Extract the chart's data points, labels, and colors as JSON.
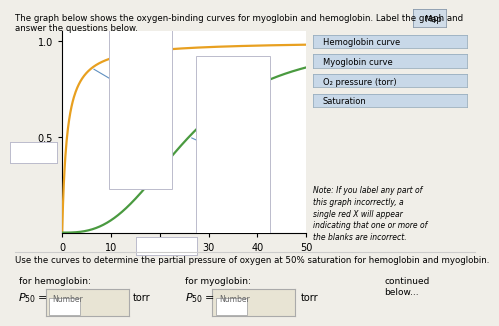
{
  "title_line1": "The graph below shows the oxygen-binding curves for myoglobin and hemoglobin. Label the graph and",
  "title_line2": "answer the questions below.",
  "xlim": [
    0,
    50
  ],
  "ylim": [
    0,
    1.05
  ],
  "xticks": [
    0,
    10,
    20,
    30,
    40,
    50
  ],
  "yticks": [
    0.5,
    1.0
  ],
  "myoglobin_color": "#E8A020",
  "hemoglobin_color": "#4A9A40",
  "label_line_color": "#6090C0",
  "bg_color": "#F0EEE8",
  "plot_bg": "#FFFFFF",
  "legend_items": [
    "Hemoglobin curve",
    "Myoglobin curve",
    "O₂ pressure (torr)",
    "Saturation"
  ],
  "legend_box_color": "#C8D8E8",
  "legend_border_color": "#9AAFBF",
  "note_text": "Note: If you label any part of\nthis graph incorrectly, a\nsingle red X will appear\nindicating that one or more of\nthe blanks are incorrect.",
  "bottom_text": "Use the curves to determine the partial pressure of oxygen at 50% saturation for hemoglobin and myoglobin.",
  "hemo_label": "for hemoglobin:",
  "myo_label": "for myoglobin:",
  "continued_text": "continued\nbelow...",
  "torr_label": "torr",
  "number_label": "Number",
  "number_box_color": "#E8E4D4",
  "number_box_border": "#AAAAAA",
  "map_label": "Map",
  "blank_box_color": "#FFFFFF",
  "blank_box_border": "#BBBBCC"
}
